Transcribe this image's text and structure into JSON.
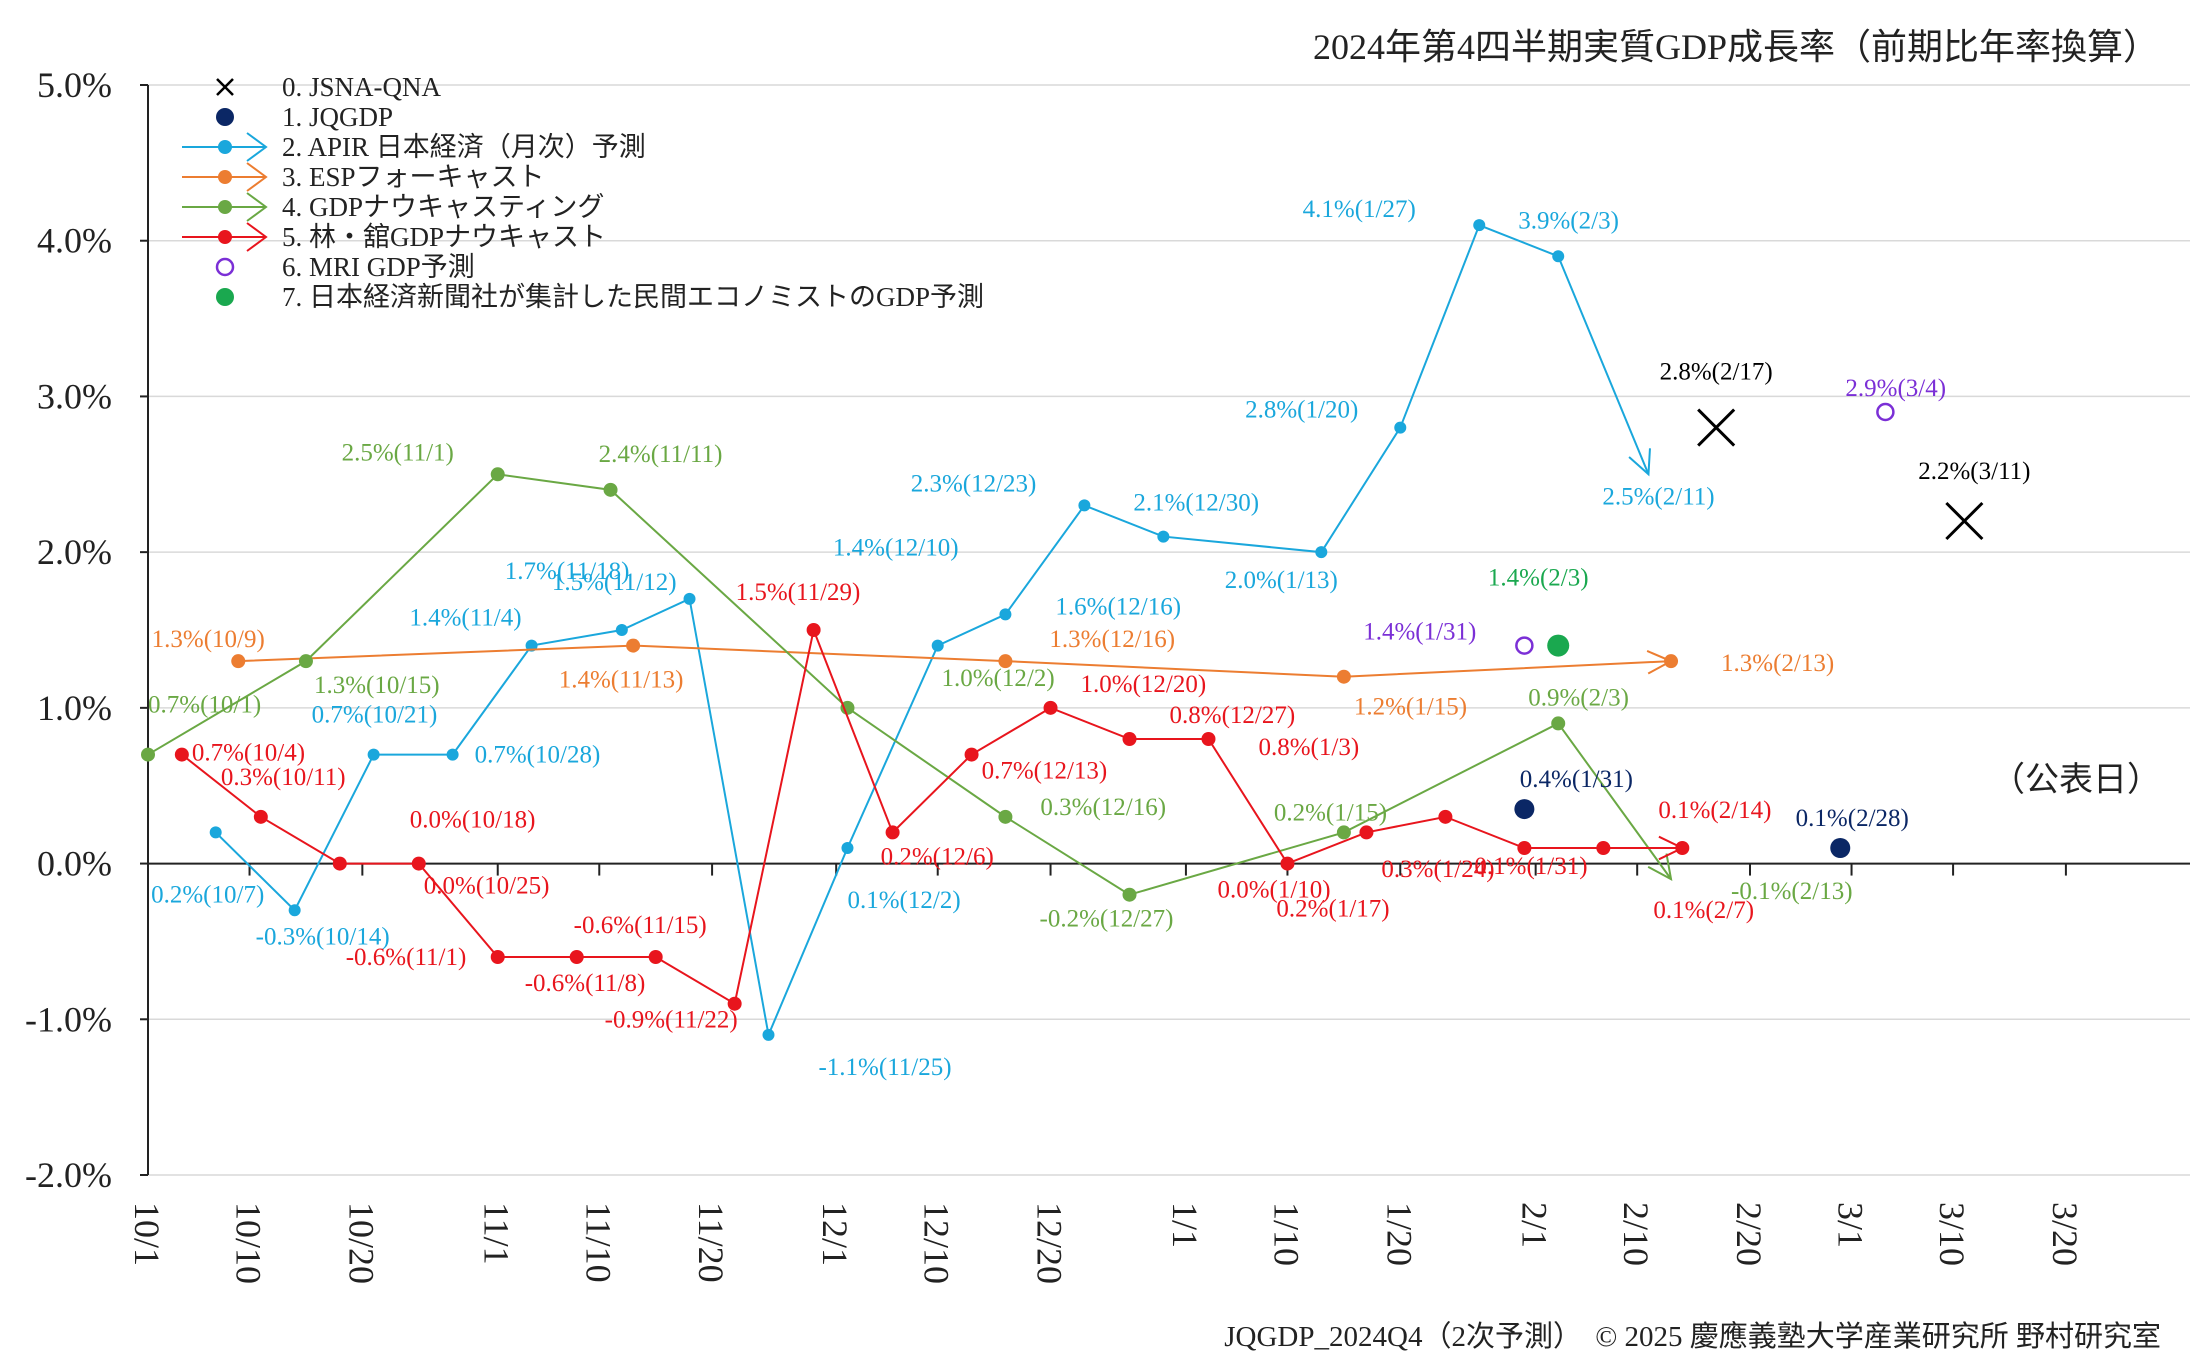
{
  "page": {
    "title": "2024年第4四半期実質GDP成長率（前期比年率換算）",
    "axis_note": "（公表日）",
    "credit_left": "JQGDP_2024Q4（2次予測）",
    "credit_right": "© 2025 慶應義塾大学産業研究所 野村研究室"
  },
  "chart_data": {
    "type": "line",
    "title": "2024年第4四半期実質GDP成長率（前期比年率換算）",
    "xlabel": "（公表日）",
    "ylabel": "",
    "ylim": [
      -2.0,
      5.0
    ],
    "yticks": [
      "5.0%",
      "4.0%",
      "3.0%",
      "2.0%",
      "1.0%",
      "0.0%",
      "-1.0%",
      "-2.0%"
    ],
    "xlim": [
      "2024-10-01",
      "2025-03-31"
    ],
    "xticks": [
      "10/1",
      "10/10",
      "10/20",
      "11/1",
      "11/10",
      "11/20",
      "12/1",
      "12/10",
      "12/20",
      "1/1",
      "1/10",
      "1/20",
      "2/1",
      "2/10",
      "2/20",
      "3/1",
      "3/10",
      "3/20"
    ],
    "grid": true,
    "legend": "top-left",
    "series": [
      {
        "name": "0. JSNA-QNA",
        "color": "#000000",
        "marker": "cross",
        "points": [
          {
            "date": "2025-02-17",
            "value": 2.8,
            "label": "2.8%(2/17)"
          },
          {
            "date": "2025-03-11",
            "value": 2.2,
            "label": "2.2%(3/11)"
          }
        ]
      },
      {
        "name": "1. JQGDP",
        "color": "#0b2765",
        "marker": "dot",
        "points": [
          {
            "date": "2025-01-31",
            "value": 0.35,
            "label": "0.4%(1/31)"
          },
          {
            "date": "2025-02-28",
            "value": 0.1,
            "label": "0.1%(2/28)"
          }
        ]
      },
      {
        "name": "2. APIR 日本経済（月次）予測",
        "color": "#1aa7dc",
        "marker": "dot",
        "line": true,
        "points": [
          {
            "date": "2024-10-07",
            "value": 0.2,
            "label": "0.2%(10/7)"
          },
          {
            "date": "2024-10-14",
            "value": -0.3,
            "label": "-0.3%(10/14)"
          },
          {
            "date": "2024-10-21",
            "value": 0.7,
            "label": "0.7%(10/21)"
          },
          {
            "date": "2024-10-28",
            "value": 0.7,
            "label": "0.7%(10/28)"
          },
          {
            "date": "2024-11-04",
            "value": 1.4,
            "label": "1.4%(11/4)"
          },
          {
            "date": "2024-11-12",
            "value": 1.5,
            "label": "1.5%(11/12)"
          },
          {
            "date": "2024-11-18",
            "value": 1.7,
            "label": "1.7%(11/18)"
          },
          {
            "date": "2024-11-25",
            "value": -1.1,
            "label": "-1.1%(11/25)"
          },
          {
            "date": "2024-12-02",
            "value": 0.1,
            "label": "0.1%(12/2)"
          },
          {
            "date": "2024-12-10",
            "value": 1.4,
            "label": "1.4%(12/10)"
          },
          {
            "date": "2024-12-16",
            "value": 1.6,
            "label": "1.6%(12/16)"
          },
          {
            "date": "2024-12-23",
            "value": 2.3,
            "label": "2.3%(12/23)"
          },
          {
            "date": "2024-12-30",
            "value": 2.1,
            "label": "2.1%(12/30)"
          },
          {
            "date": "2025-01-13",
            "value": 2.0,
            "label": "2.0%(1/13)"
          },
          {
            "date": "2025-01-20",
            "value": 2.8,
            "label": "2.8%(1/20)"
          },
          {
            "date": "2025-01-27",
            "value": 4.1,
            "label": "4.1%(1/27)"
          },
          {
            "date": "2025-02-03",
            "value": 3.9,
            "label": "3.9%(2/3)"
          },
          {
            "date": "2025-02-11",
            "value": 2.5,
            "label": "2.5%(2/11)"
          }
        ]
      },
      {
        "name": "3. ESPフォーキャスト",
        "color": "#ec7d31",
        "marker": "dot",
        "line": true,
        "points": [
          {
            "date": "2024-10-09",
            "value": 1.3,
            "label": "1.3%(10/9)"
          },
          {
            "date": "2024-11-13",
            "value": 1.4,
            "label": "1.4%(11/13)"
          },
          {
            "date": "2024-12-16",
            "value": 1.3,
            "label": "1.3%(12/16)"
          },
          {
            "date": "2025-01-15",
            "value": 1.2,
            "label": "1.2%(1/15)"
          },
          {
            "date": "2025-02-13",
            "value": 1.3,
            "label": "1.3%(2/13)"
          }
        ]
      },
      {
        "name": "4. GDPナウキャスティング",
        "color": "#6aa844",
        "marker": "dot",
        "line": true,
        "points": [
          {
            "date": "2024-10-01",
            "value": 0.7,
            "label": "0.7%(10/1)"
          },
          {
            "date": "2024-10-15",
            "value": 1.3,
            "label": "1.3%(10/15)"
          },
          {
            "date": "2024-11-01",
            "value": 2.5,
            "label": "2.5%(11/1)"
          },
          {
            "date": "2024-11-11",
            "value": 2.4,
            "label": "2.4%(11/11)"
          },
          {
            "date": "2024-12-02",
            "value": 1.0,
            "label": "1.0%(12/2)"
          },
          {
            "date": "2024-12-16",
            "value": 0.3,
            "label": "0.3%(12/16)"
          },
          {
            "date": "2024-12-27",
            "value": -0.2,
            "label": "-0.2%(12/27)"
          },
          {
            "date": "2025-01-15",
            "value": 0.2,
            "label": "0.2%(1/15)"
          },
          {
            "date": "2025-02-03",
            "value": 0.9,
            "label": "0.9%(2/3)"
          },
          {
            "date": "2025-02-13",
            "value": -0.1,
            "label": "-0.1%(2/13)"
          }
        ]
      },
      {
        "name": "5. 林・舘GDPナウキャスト",
        "color": "#e8151d",
        "marker": "dot",
        "line": true,
        "points": [
          {
            "date": "2024-10-04",
            "value": 0.7,
            "label": "0.7%(10/4)"
          },
          {
            "date": "2024-10-11",
            "value": 0.3,
            "label": "0.3%(10/11)"
          },
          {
            "date": "2024-10-18",
            "value": 0.0,
            "label": "0.0%(10/18)"
          },
          {
            "date": "2024-10-25",
            "value": 0.0,
            "label": "0.0%(10/25)"
          },
          {
            "date": "2024-11-01",
            "value": -0.6,
            "label": "-0.6%(11/1)"
          },
          {
            "date": "2024-11-08",
            "value": -0.6,
            "label": "-0.6%(11/8)"
          },
          {
            "date": "2024-11-15",
            "value": -0.6,
            "label": "-0.6%(11/15)"
          },
          {
            "date": "2024-11-22",
            "value": -0.9,
            "label": "-0.9%(11/22)"
          },
          {
            "date": "2024-11-29",
            "value": 1.5,
            "label": "1.5%(11/29)"
          },
          {
            "date": "2024-12-06",
            "value": 0.2,
            "label": "0.2%(12/6)"
          },
          {
            "date": "2024-12-13",
            "value": 0.7,
            "label": "0.7%(12/13)"
          },
          {
            "date": "2024-12-20",
            "value": 1.0,
            "label": "1.0%(12/20)"
          },
          {
            "date": "2024-12-27",
            "value": 0.8,
            "label": "0.8%(12/27)"
          },
          {
            "date": "2025-01-03",
            "value": 0.8,
            "label": "0.8%(1/3)"
          },
          {
            "date": "2025-01-10",
            "value": 0.0,
            "label": "0.0%(1/10)"
          },
          {
            "date": "2025-01-17",
            "value": 0.2,
            "label": "0.2%(1/17)"
          },
          {
            "date": "2025-01-24",
            "value": 0.3,
            "label": "0.3%(1/24)"
          },
          {
            "date": "2025-01-31",
            "value": 0.1,
            "label": "0.1%(1/31)"
          },
          {
            "date": "2025-02-07",
            "value": 0.1,
            "label": "0.1%(2/7)"
          },
          {
            "date": "2025-02-14",
            "value": 0.1,
            "label": "0.1%(2/14)"
          }
        ]
      },
      {
        "name": "6. MRI GDP予測",
        "color": "#7b2fd6",
        "marker": "ring",
        "points": [
          {
            "date": "2025-01-31",
            "value": 1.4,
            "label": "1.4%(1/31)"
          },
          {
            "date": "2025-03-04",
            "value": 2.9,
            "label": "2.9%(3/4)"
          }
        ]
      },
      {
        "name": "7. 日本経済新聞社が集計した民間エコノミストのGDP予測",
        "color": "#1aa84f",
        "marker": "bigdot",
        "points": [
          {
            "date": "2025-02-03",
            "value": 1.4,
            "label": "1.4%(2/3)"
          }
        ]
      }
    ]
  }
}
